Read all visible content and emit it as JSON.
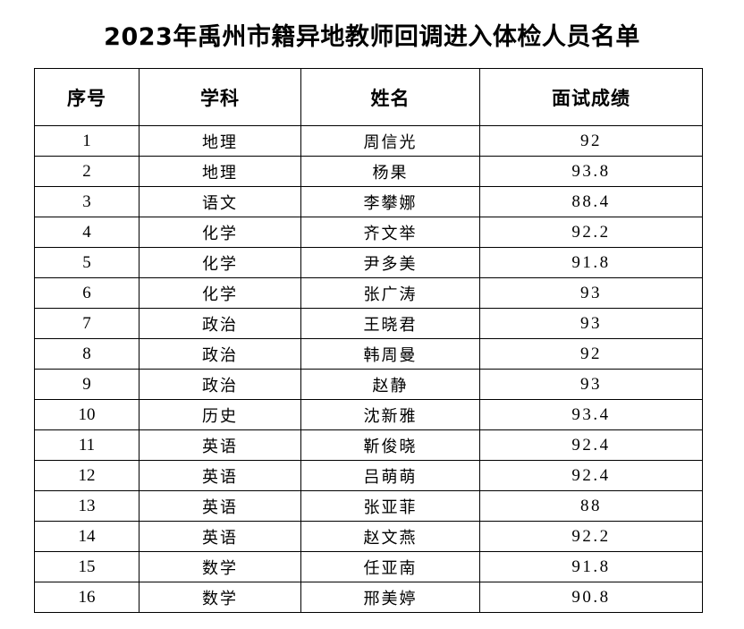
{
  "document": {
    "title": "2023年禹州市籍异地教师回调进入体检人员名单"
  },
  "table": {
    "headers": {
      "index": "序号",
      "subject": "学科",
      "name": "姓名",
      "score": "面试成绩"
    },
    "rows": [
      {
        "index": "1",
        "subject": "地理",
        "name": "周信光",
        "score": "92"
      },
      {
        "index": "2",
        "subject": "地理",
        "name": "杨果",
        "score": "93.8"
      },
      {
        "index": "3",
        "subject": "语文",
        "name": "李攀娜",
        "score": "88.4"
      },
      {
        "index": "4",
        "subject": "化学",
        "name": "齐文举",
        "score": "92.2"
      },
      {
        "index": "5",
        "subject": "化学",
        "name": "尹多美",
        "score": "91.8"
      },
      {
        "index": "6",
        "subject": "化学",
        "name": "张广涛",
        "score": "93"
      },
      {
        "index": "7",
        "subject": "政治",
        "name": "王晓君",
        "score": "93"
      },
      {
        "index": "8",
        "subject": "政治",
        "name": "韩周曼",
        "score": "92"
      },
      {
        "index": "9",
        "subject": "政治",
        "name": "赵静",
        "score": "93"
      },
      {
        "index": "10",
        "subject": "历史",
        "name": "沈新雅",
        "score": "93.4"
      },
      {
        "index": "11",
        "subject": "英语",
        "name": "靳俊晓",
        "score": "92.4"
      },
      {
        "index": "12",
        "subject": "英语",
        "name": "吕萌萌",
        "score": "92.4"
      },
      {
        "index": "13",
        "subject": "英语",
        "name": "张亚菲",
        "score": "88"
      },
      {
        "index": "14",
        "subject": "英语",
        "name": "赵文燕",
        "score": "92.2"
      },
      {
        "index": "15",
        "subject": "数学",
        "name": "任亚南",
        "score": "91.8"
      },
      {
        "index": "16",
        "subject": "数学",
        "name": "邢美婷",
        "score": "90.8"
      }
    ]
  }
}
